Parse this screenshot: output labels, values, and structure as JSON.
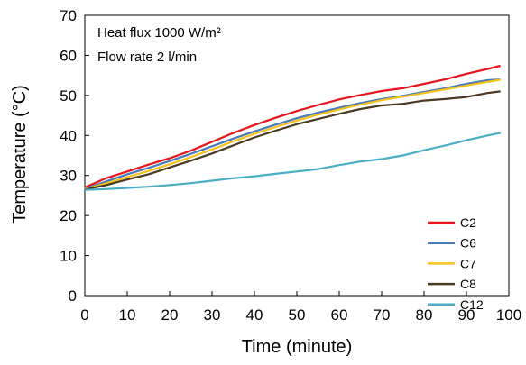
{
  "chart_data": {
    "type": "line",
    "xlabel": "Time (minute)",
    "ylabel": "Temperature (°C)",
    "xlim": [
      0,
      100
    ],
    "ylim": [
      0,
      70
    ],
    "xticks": [
      0,
      10,
      20,
      30,
      40,
      50,
      60,
      70,
      80,
      90,
      100
    ],
    "yticks": [
      0,
      10,
      20,
      30,
      40,
      50,
      60,
      70
    ],
    "grid": false,
    "legend_position": "bottom-right",
    "annotations": [
      "Heat flux 1000 W/m²",
      "Flow rate 2 l/min"
    ],
    "x": [
      0,
      5,
      10,
      15,
      20,
      25,
      30,
      35,
      40,
      45,
      50,
      55,
      60,
      65,
      70,
      75,
      80,
      85,
      90,
      95,
      98
    ],
    "series": [
      {
        "name": "C2",
        "color": "#e8141c",
        "values": [
          27.0,
          29.3,
          31.0,
          32.7,
          34.3,
          36.2,
          38.4,
          40.6,
          42.6,
          44.4,
          46.1,
          47.6,
          49.0,
          50.1,
          51.1,
          51.8,
          52.9,
          54.0,
          55.4,
          56.6,
          57.4
        ]
      },
      {
        "name": "C6",
        "color": "#4a7ab8",
        "values": [
          26.7,
          28.5,
          30.3,
          31.9,
          33.6,
          35.4,
          37.3,
          39.2,
          41.0,
          42.7,
          44.3,
          45.7,
          46.9,
          48.1,
          49.1,
          49.9,
          50.9,
          51.8,
          52.9,
          53.8,
          54.0
        ]
      },
      {
        "name": "C7",
        "color": "#f5c21b",
        "values": [
          26.6,
          28.0,
          29.6,
          31.1,
          32.8,
          34.6,
          36.5,
          38.5,
          40.4,
          42.1,
          43.7,
          45.2,
          46.5,
          47.7,
          48.8,
          49.7,
          50.6,
          51.5,
          52.5,
          53.4,
          53.9
        ]
      },
      {
        "name": "C8",
        "color": "#4a3a22",
        "values": [
          26.5,
          27.6,
          29.0,
          30.3,
          32.0,
          33.7,
          35.5,
          37.5,
          39.5,
          41.2,
          42.8,
          44.1,
          45.4,
          46.6,
          47.5,
          47.9,
          48.7,
          49.1,
          49.6,
          50.6,
          51.0
        ]
      },
      {
        "name": "C12",
        "color": "#4aaec4",
        "values": [
          26.4,
          26.6,
          26.9,
          27.2,
          27.6,
          28.1,
          28.7,
          29.3,
          29.8,
          30.4,
          31.0,
          31.6,
          32.6,
          33.5,
          34.1,
          35.0,
          36.3,
          37.5,
          38.8,
          40.0,
          40.6
        ]
      }
    ]
  }
}
